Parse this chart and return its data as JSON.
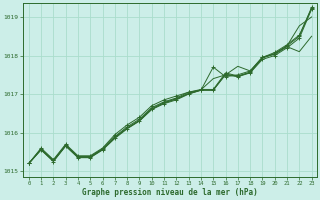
{
  "bg_color": "#cceee8",
  "grid_color": "#aaddcc",
  "line_color": "#2d6a2d",
  "xlabel": "Graphe pression niveau de la mer (hPa)",
  "xlabel_color": "#2d6a2d",
  "ylim": [
    1014.85,
    1019.35
  ],
  "xlim": [
    -0.5,
    23.4
  ],
  "yticks": [
    1015,
    1016,
    1017,
    1018,
    1019
  ],
  "xticks": [
    0,
    1,
    2,
    3,
    4,
    5,
    6,
    7,
    8,
    9,
    10,
    11,
    12,
    13,
    14,
    15,
    16,
    17,
    18,
    19,
    20,
    21,
    22,
    23
  ],
  "series1_x": [
    0,
    1,
    2,
    3,
    4,
    5,
    6,
    7,
    8,
    9,
    10,
    11,
    12,
    13,
    14,
    15,
    16,
    17,
    18,
    19,
    20,
    21,
    22,
    23
  ],
  "series1": [
    1015.2,
    1015.55,
    1015.25,
    1015.65,
    1015.35,
    1015.35,
    1015.55,
    1015.85,
    1016.1,
    1016.3,
    1016.6,
    1016.75,
    1016.85,
    1017.0,
    1017.1,
    1017.1,
    1017.5,
    1017.45,
    1017.55,
    1017.9,
    1018.0,
    1018.2,
    1018.45,
    1019.2
  ],
  "series2_x": [
    0,
    1,
    2,
    3,
    4,
    5,
    6,
    7,
    8,
    9,
    10,
    11,
    12,
    13,
    14,
    15,
    16,
    17,
    18,
    19,
    20,
    21,
    22,
    23
  ],
  "series2": [
    1015.2,
    1015.58,
    1015.28,
    1015.68,
    1015.38,
    1015.38,
    1015.58,
    1015.9,
    1016.15,
    1016.35,
    1016.65,
    1016.8,
    1016.9,
    1017.05,
    1017.1,
    1017.7,
    1017.45,
    1017.5,
    1017.6,
    1017.95,
    1018.05,
    1018.25,
    1018.5,
    1019.25
  ],
  "series3_x": [
    0,
    1,
    2,
    3,
    4,
    5,
    6,
    7,
    8,
    9,
    10,
    11,
    12,
    13,
    14,
    15,
    16,
    17,
    18,
    19,
    20,
    21,
    22,
    23
  ],
  "series3": [
    1015.2,
    1015.6,
    1015.3,
    1015.7,
    1015.4,
    1015.4,
    1015.6,
    1015.95,
    1016.2,
    1016.4,
    1016.7,
    1016.85,
    1016.95,
    1017.05,
    1017.12,
    1017.12,
    1017.55,
    1017.47,
    1017.57,
    1017.95,
    1018.08,
    1018.28,
    1018.53,
    1019.22
  ],
  "series4_x": [
    0,
    1,
    2,
    3,
    4,
    5,
    6,
    7,
    8,
    9,
    10,
    11,
    12,
    13,
    14,
    15,
    16,
    17,
    18,
    19,
    20,
    21,
    22,
    23
  ],
  "series4": [
    1015.2,
    1015.57,
    1015.27,
    1015.67,
    1015.37,
    1015.37,
    1015.57,
    1015.88,
    1016.12,
    1016.32,
    1016.62,
    1016.78,
    1016.88,
    1017.02,
    1017.11,
    1017.4,
    1017.5,
    1017.72,
    1017.6,
    1017.96,
    1018.03,
    1018.23,
    1018.1,
    1018.5
  ],
  "series5_x": [
    0,
    1,
    2,
    3,
    4,
    5,
    6,
    7,
    8,
    9,
    10,
    11,
    12,
    13,
    14,
    15,
    16,
    17,
    18,
    19,
    20,
    21,
    22,
    23
  ],
  "series5": [
    1015.2,
    1015.56,
    1015.26,
    1015.66,
    1015.36,
    1015.36,
    1015.56,
    1015.87,
    1016.11,
    1016.31,
    1016.61,
    1016.77,
    1016.87,
    1017.01,
    1017.1,
    1017.1,
    1017.52,
    1017.46,
    1017.56,
    1017.93,
    1018.05,
    1018.25,
    1018.77,
    1019.0
  ]
}
